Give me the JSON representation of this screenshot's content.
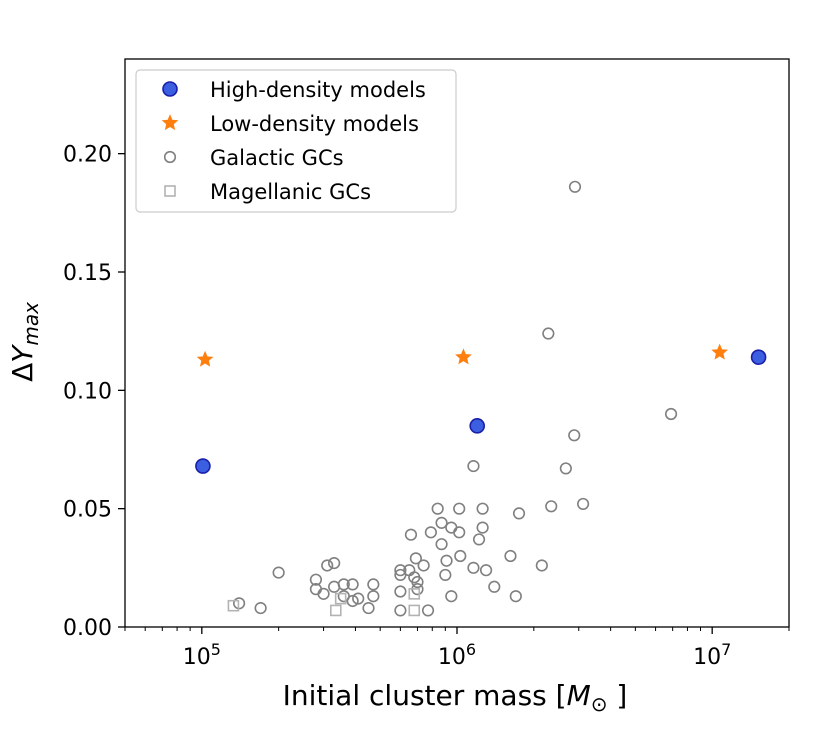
{
  "chart_data": {
    "type": "scatter",
    "title": "",
    "xlabel": "Initial cluster mass [M⊙]",
    "ylabel": "ΔY_max",
    "xscale": "log",
    "xlim": [
      50000,
      20000000
    ],
    "ylim": [
      0.0,
      0.24
    ],
    "x_ticks": [
      {
        "value": 100000,
        "label": "10^5"
      },
      {
        "value": 1000000,
        "label": "10^6"
      },
      {
        "value": 10000000,
        "label": "10^7"
      }
    ],
    "y_ticks": [
      {
        "value": 0.0,
        "label": "0.00"
      },
      {
        "value": 0.05,
        "label": "0.05"
      },
      {
        "value": 0.1,
        "label": "0.10"
      },
      {
        "value": 0.15,
        "label": "0.15"
      },
      {
        "value": 0.2,
        "label": "0.20"
      }
    ],
    "legend_position": "top-left",
    "grid": false,
    "series": [
      {
        "name": "High-density models",
        "marker": "circle",
        "filled": true,
        "color": "#3b5fe0",
        "edge_color": "#1a1fa8",
        "points": [
          [
            101000,
            0.068
          ],
          [
            1200000,
            0.085
          ],
          [
            15200000,
            0.114
          ]
        ]
      },
      {
        "name": "Low-density models",
        "marker": "star",
        "filled": true,
        "color": "#ff7f0e",
        "edge_color": "#ff7f0e",
        "points": [
          [
            103000,
            0.113
          ],
          [
            1060000,
            0.114
          ],
          [
            10700000,
            0.116
          ]
        ]
      },
      {
        "name": "Galactic GCs",
        "marker": "circle",
        "filled": false,
        "color": "#808080",
        "edge_color": "#808080",
        "points": [
          [
            2900000,
            0.186
          ],
          [
            2280000,
            0.124
          ],
          [
            6900000,
            0.09
          ],
          [
            2880000,
            0.081
          ],
          [
            1160000,
            0.068
          ],
          [
            2670000,
            0.067
          ],
          [
            3120000,
            0.052
          ],
          [
            2340000,
            0.051
          ],
          [
            840000,
            0.05
          ],
          [
            1020000,
            0.05
          ],
          [
            1260000,
            0.05
          ],
          [
            1750000,
            0.048
          ],
          [
            870000,
            0.044
          ],
          [
            950000,
            0.042
          ],
          [
            1260000,
            0.042
          ],
          [
            790000,
            0.04
          ],
          [
            1020000,
            0.04
          ],
          [
            660000,
            0.039
          ],
          [
            1220000,
            0.037
          ],
          [
            870000,
            0.035
          ],
          [
            1030000,
            0.03
          ],
          [
            1620000,
            0.03
          ],
          [
            690000,
            0.029
          ],
          [
            910000,
            0.028
          ],
          [
            330000,
            0.027
          ],
          [
            310000,
            0.026
          ],
          [
            740000,
            0.026
          ],
          [
            2150000,
            0.026
          ],
          [
            1160000,
            0.025
          ],
          [
            1300000,
            0.024
          ],
          [
            600000,
            0.024
          ],
          [
            650000,
            0.024
          ],
          [
            200000,
            0.023
          ],
          [
            600000,
            0.022
          ],
          [
            900000,
            0.022
          ],
          [
            680000,
            0.021
          ],
          [
            280000,
            0.02
          ],
          [
            700000,
            0.019
          ],
          [
            360000,
            0.018
          ],
          [
            390000,
            0.018
          ],
          [
            470000,
            0.018
          ],
          [
            330000,
            0.017
          ],
          [
            1400000,
            0.017
          ],
          [
            280000,
            0.016
          ],
          [
            700000,
            0.016
          ],
          [
            600000,
            0.015
          ],
          [
            300000,
            0.014
          ],
          [
            360000,
            0.013
          ],
          [
            1700000,
            0.013
          ],
          [
            470000,
            0.013
          ],
          [
            410000,
            0.012
          ],
          [
            950000,
            0.013
          ],
          [
            390000,
            0.011
          ],
          [
            140000,
            0.01
          ],
          [
            170000,
            0.008
          ],
          [
            450000,
            0.008
          ],
          [
            600000,
            0.007
          ],
          [
            770000,
            0.007
          ]
        ]
      },
      {
        "name": "Magellanic GCs",
        "marker": "square",
        "filled": false,
        "color": "#b3b3b3",
        "edge_color": "#b3b3b3",
        "points": [
          [
            133000,
            0.009
          ],
          [
            350000,
            0.012
          ],
          [
            680000,
            0.014
          ],
          [
            335000,
            0.007
          ],
          [
            680000,
            0.007
          ]
        ]
      }
    ]
  }
}
